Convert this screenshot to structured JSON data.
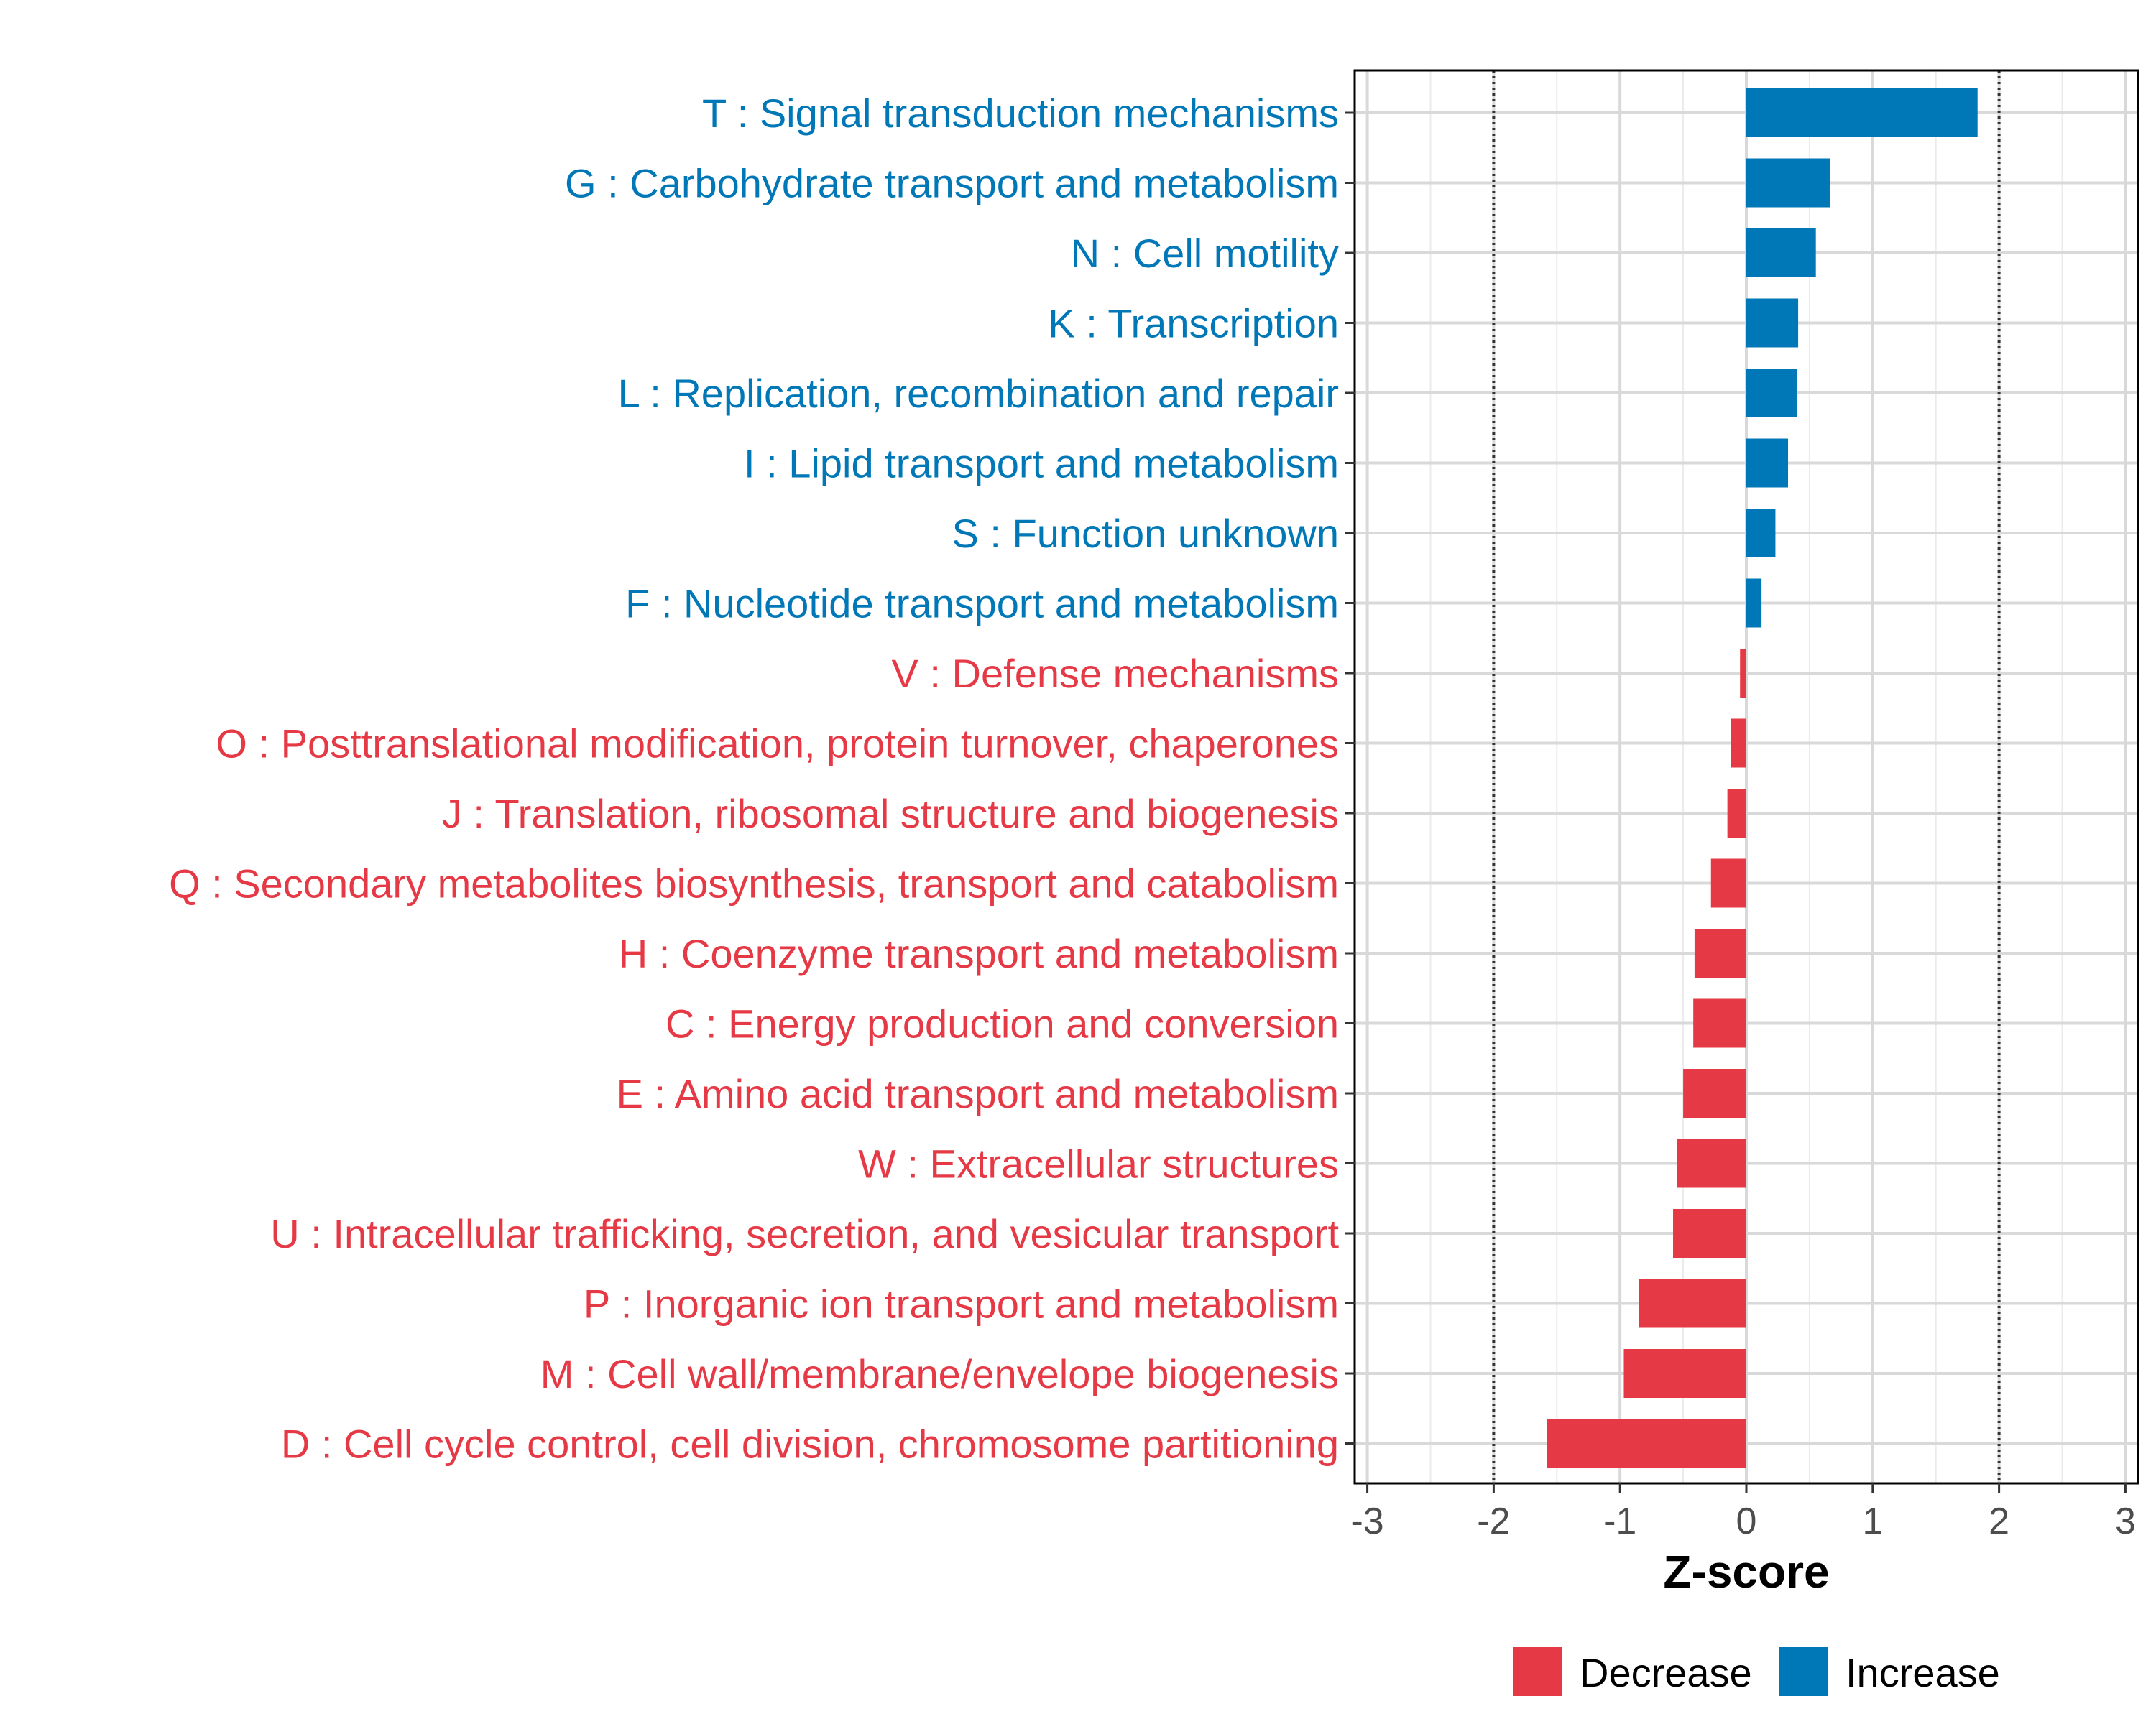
{
  "chart_data": {
    "type": "bar",
    "orientation": "horizontal",
    "title": "",
    "xlabel": "Z-score",
    "ylabel": "",
    "xlim": [
      -3.1,
      3.1
    ],
    "xticks": [
      -3,
      -2,
      -1,
      0,
      1,
      2,
      3
    ],
    "xtick_labels": [
      "-3",
      "-2",
      "-1",
      "0",
      "1",
      "2",
      "3"
    ],
    "reference_lines": [
      -2,
      2
    ],
    "grid": true,
    "legend_position": "bottom",
    "categories": [
      "T : Signal transduction mechanisms",
      "G : Carbohydrate transport and metabolism",
      "N : Cell motility",
      "K : Transcription",
      "L : Replication, recombination and repair",
      "I : Lipid transport and metabolism",
      "S : Function unknown",
      "F : Nucleotide transport and metabolism",
      "V : Defense mechanisms",
      "O : Posttranslational modification, protein turnover, chaperones",
      "J : Translation, ribosomal structure and biogenesis",
      "Q : Secondary metabolites biosynthesis, transport and catabolism",
      "H : Coenzyme transport and metabolism",
      "C : Energy production and conversion",
      "E : Amino acid transport and metabolism",
      "W : Extracellular structures",
      "U : Intracellular trafficking, secretion, and vesicular transport",
      "P : Inorganic ion transport and metabolism",
      "M : Cell wall/membrane/envelope biogenesis",
      "D : Cell cycle control, cell division, chromosome partitioning"
    ],
    "values": [
      1.83,
      0.66,
      0.55,
      0.41,
      0.4,
      0.33,
      0.23,
      0.12,
      -0.05,
      -0.12,
      -0.15,
      -0.28,
      -0.41,
      -0.42,
      -0.5,
      -0.55,
      -0.58,
      -0.85,
      -0.97,
      -1.58
    ],
    "groups": [
      "Increase",
      "Increase",
      "Increase",
      "Increase",
      "Increase",
      "Increase",
      "Increase",
      "Increase",
      "Decrease",
      "Decrease",
      "Decrease",
      "Decrease",
      "Decrease",
      "Decrease",
      "Decrease",
      "Decrease",
      "Decrease",
      "Decrease",
      "Decrease",
      "Decrease"
    ],
    "legend": [
      {
        "name": "Decrease",
        "color": "#E63946"
      },
      {
        "name": "Increase",
        "color": "#0077B6"
      }
    ],
    "colors": {
      "Decrease": "#E63946",
      "Increase": "#0077B6"
    }
  }
}
